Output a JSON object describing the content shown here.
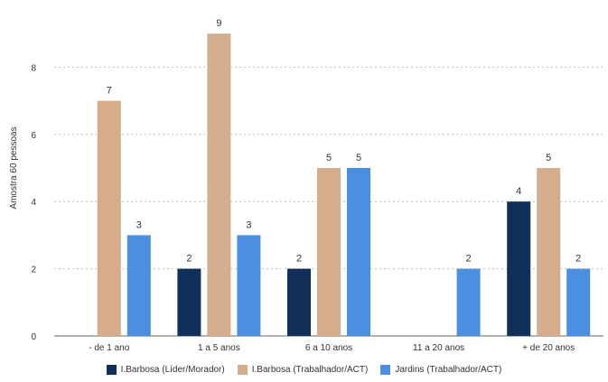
{
  "chart_data": {
    "type": "bar",
    "ylabel": "Amostra 60 pessoas",
    "ylim": [
      0,
      10
    ],
    "yticks": [
      "0",
      "2",
      "4",
      "6",
      "8"
    ],
    "grid": true,
    "legend_position": "bottom",
    "categories": [
      "- de 1 ano",
      "1 a 5 anos",
      "6 a 10 anos",
      "11 a 20 anos",
      "+ de 20 anos"
    ],
    "series": [
      {
        "name": "I.Barbosa (Líder/Morador)",
        "color": "#10305a",
        "values": [
          0,
          2,
          2,
          0,
          4
        ]
      },
      {
        "name": "I.Barbosa (Trabalhador/ACT)",
        "color": "#d5ad8c",
        "values": [
          7,
          9,
          5,
          0,
          5
        ]
      },
      {
        "name": "Jardins (Trabalhador/ACT)",
        "color": "#4a8fe0",
        "values": [
          3,
          3,
          5,
          2,
          2
        ]
      }
    ]
  }
}
